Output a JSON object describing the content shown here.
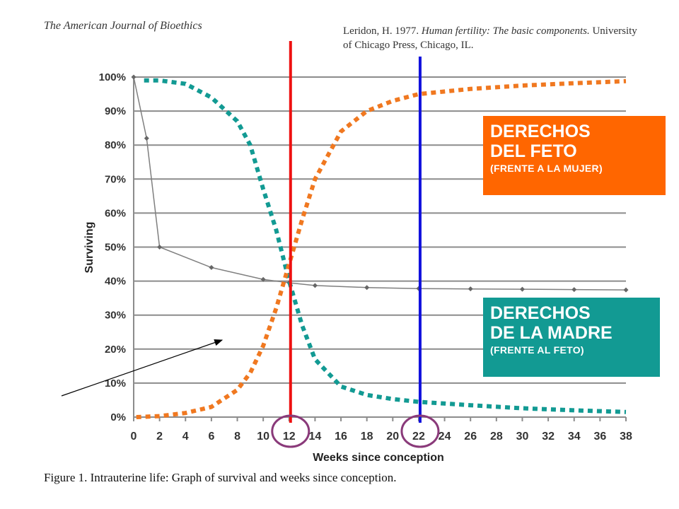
{
  "header": {
    "journal": "The American Journal of Bioethics",
    "citation_author": "Leridon, H. 1977.",
    "citation_book": "Human fertility: The basic components.",
    "citation_rest": "University",
    "citation_line2": "of Chicago Press, Chicago, IL."
  },
  "caption": "Figure 1.  Intrauterine life: Graph of survival and weeks since conception.",
  "boxes": {
    "fetus": {
      "line1": "DERECHOS",
      "line2": "DEL FETO",
      "line3": "(FRENTE A LA MUJER)",
      "color": "#ff6600"
    },
    "mother": {
      "line1": "DERECHOS",
      "line2": "DE LA MADRE",
      "line3": "(FRENTE AL FETO)",
      "color": "#129a93"
    }
  },
  "chart_data": {
    "type": "line",
    "xlabel": "Weeks since conception",
    "ylabel": "Surviving",
    "xlim": [
      0,
      38
    ],
    "ylim": [
      0,
      100
    ],
    "x_ticks": [
      0,
      2,
      4,
      6,
      8,
      10,
      12,
      14,
      16,
      18,
      20,
      22,
      24,
      26,
      28,
      30,
      32,
      34,
      36,
      38
    ],
    "y_ticks": [
      0,
      10,
      20,
      30,
      40,
      50,
      60,
      70,
      80,
      90,
      100
    ],
    "y_tick_labels": [
      "0%",
      "10%",
      "20%",
      "30%",
      "40%",
      "50%",
      "60%",
      "70%",
      "80%",
      "90%",
      "100%"
    ],
    "grid": true,
    "series": [
      {
        "values_x": [
          0,
          1,
          2,
          6,
          10,
          12,
          14,
          18,
          22,
          26,
          30,
          34,
          38
        ],
        "values_y": [
          100,
          82,
          50,
          44,
          40.5,
          39.5,
          38.7,
          38.1,
          37.8,
          37.7,
          37.6,
          37.5,
          37.4
        ],
        "color": "#7f7f7f",
        "style": "line-with-diamond-markers"
      },
      {
        "values_x": [
          0.8,
          2,
          4,
          6,
          8,
          9,
          10,
          11,
          12,
          13,
          14,
          16,
          18,
          20,
          22,
          26,
          30,
          34,
          38
        ],
        "values_y": [
          99,
          99,
          98,
          94,
          87,
          80,
          67,
          55,
          40,
          27,
          17,
          9,
          6.5,
          5.3,
          4.5,
          3.5,
          2.6,
          2,
          1.5
        ],
        "color": "#129a93",
        "style": "dotted"
      },
      {
        "values_x": [
          0.2,
          2,
          4,
          6,
          8,
          9,
          10,
          11,
          12,
          13,
          14,
          16,
          18,
          20,
          22,
          26,
          30,
          34,
          38
        ],
        "values_y": [
          0,
          0.3,
          1.2,
          3,
          8,
          13,
          21,
          32,
          45,
          58,
          70,
          84,
          90,
          93,
          95,
          96.5,
          97.5,
          98.2,
          98.8
        ],
        "color": "#f07820",
        "style": "dotted"
      }
    ],
    "vertical_lines": [
      {
        "x": 12,
        "color": "#ee1111"
      },
      {
        "x": 22,
        "color": "#1111dd"
      }
    ],
    "circled_ticks": [
      12,
      22
    ],
    "circle_color": "#8a3a7a"
  }
}
